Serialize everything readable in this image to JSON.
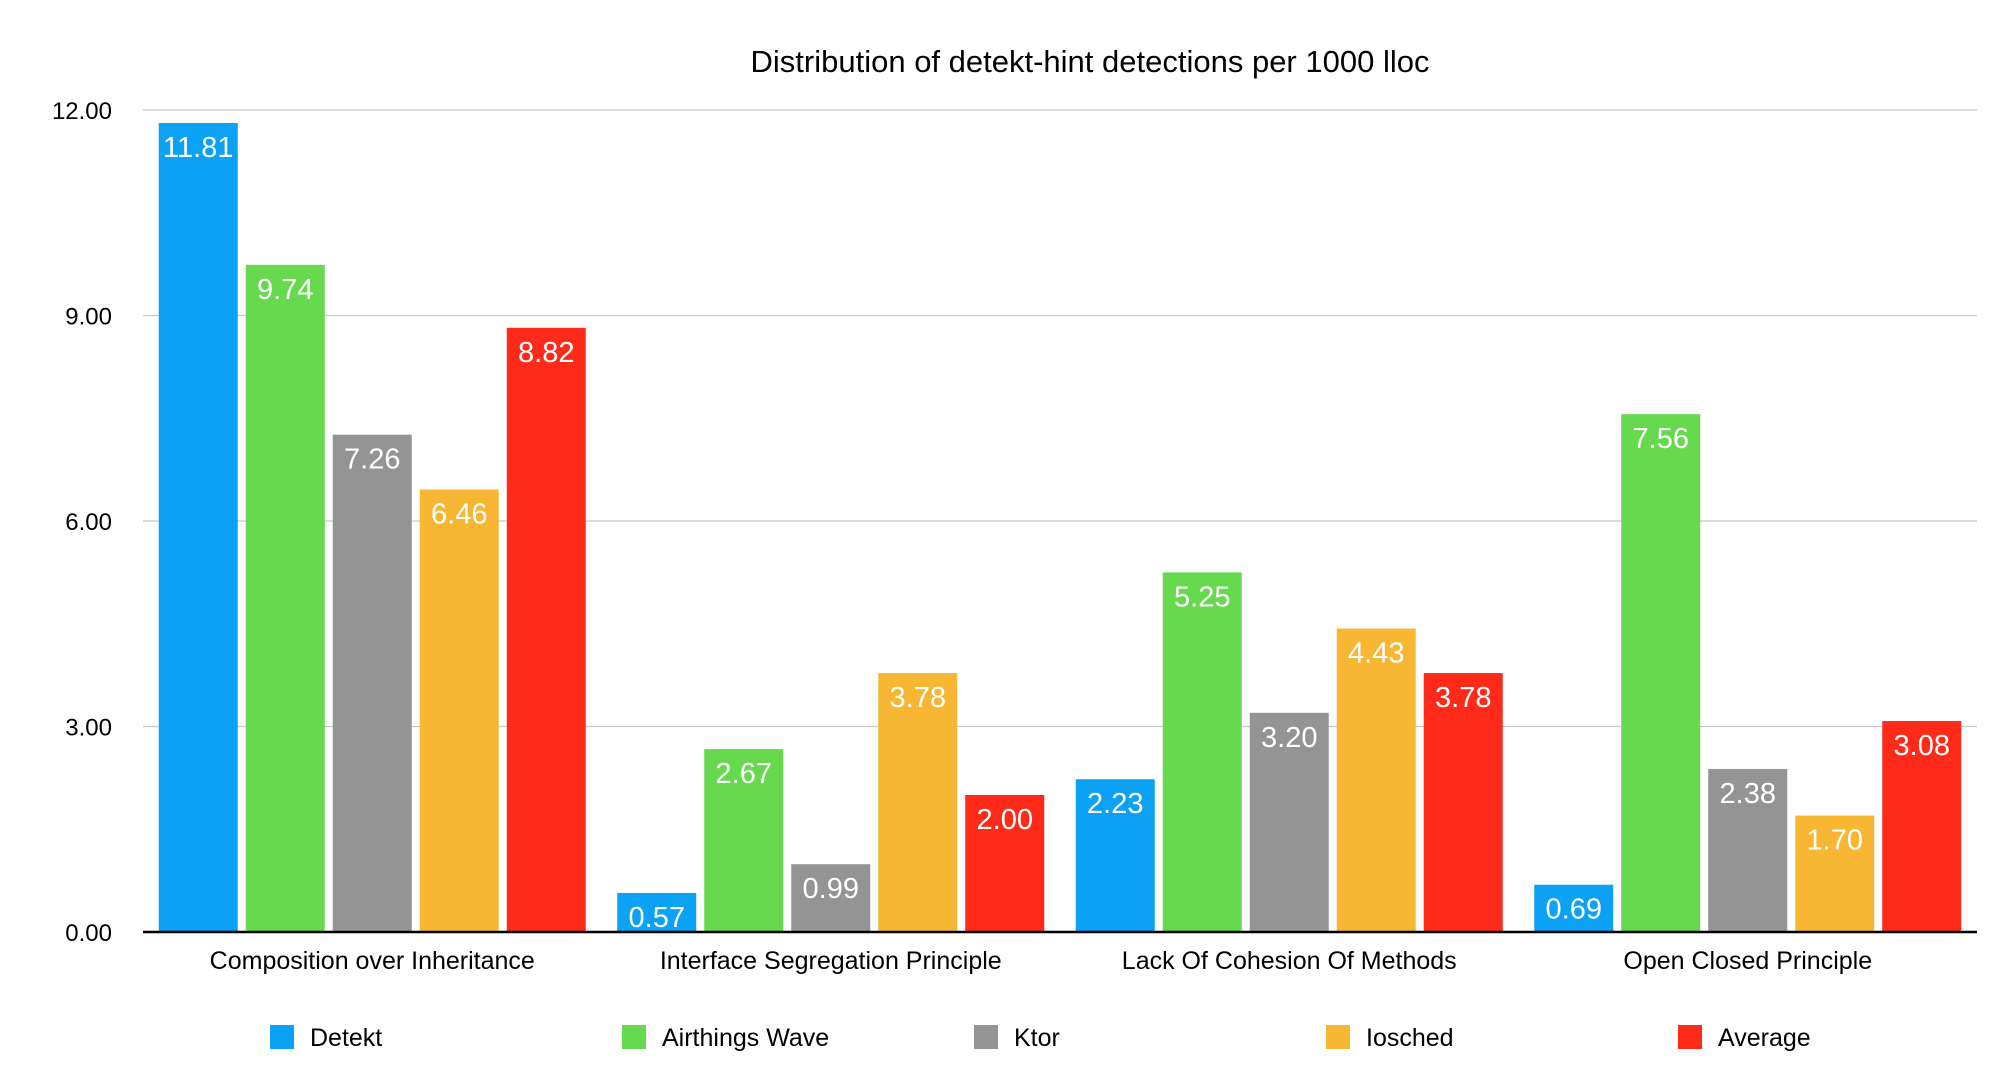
{
  "chart_data": {
    "type": "bar",
    "title": "Distribution of detekt-hint detections per 1000 lloc",
    "xlabel": "",
    "ylabel": "",
    "ylim": [
      0,
      12
    ],
    "yticks": [
      "0.00",
      "3.00",
      "6.00",
      "9.00",
      "12.00"
    ],
    "ytick_values": [
      0,
      3,
      6,
      9,
      12
    ],
    "grid": true,
    "legend_position": "bottom",
    "categories": [
      "Composition over Inheritance",
      "Interface Segregation Principle",
      "Lack Of Cohesion Of Methods",
      "Open Closed Principle"
    ],
    "series": [
      {
        "name": "Detekt",
        "color": "#0BA1F5",
        "values": [
          11.81,
          0.57,
          2.23,
          0.69
        ],
        "labels": [
          "11.81",
          "0.57",
          "2.23",
          "0.69"
        ]
      },
      {
        "name": "Airthings Wave",
        "color": "#67D94F",
        "values": [
          9.74,
          2.67,
          5.25,
          7.56
        ],
        "labels": [
          "9.74",
          "2.67",
          "5.25",
          "7.56"
        ]
      },
      {
        "name": "Ktor",
        "color": "#949494",
        "values": [
          7.26,
          0.99,
          3.2,
          2.38
        ],
        "labels": [
          "7.26",
          "0.99",
          "3.20",
          "2.38"
        ]
      },
      {
        "name": "Iosched",
        "color": "#F7B733",
        "values": [
          6.46,
          3.78,
          4.43,
          1.7
        ],
        "labels": [
          "6.46",
          "3.78",
          "4.43",
          "1.70"
        ]
      },
      {
        "name": "Average",
        "color": "#FF2A1A",
        "values": [
          8.82,
          2.0,
          3.78,
          3.08
        ],
        "labels": [
          "8.82",
          "2.00",
          "3.78",
          "3.08"
        ]
      }
    ]
  }
}
